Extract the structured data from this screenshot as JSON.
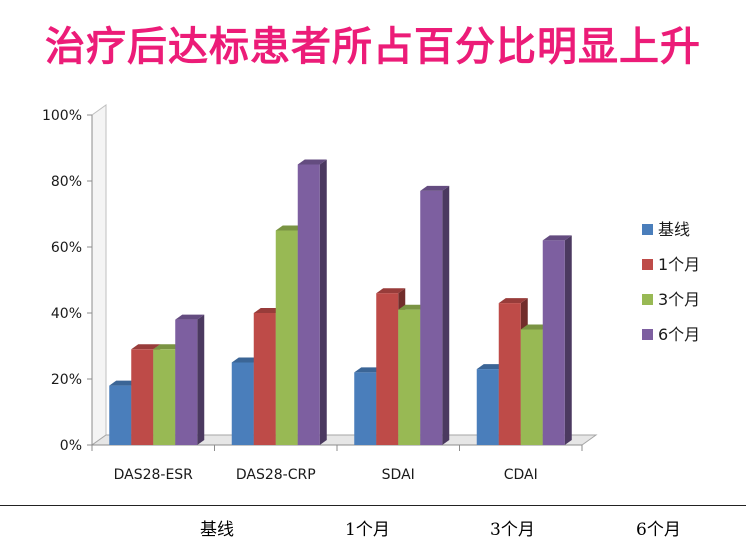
{
  "title": "治疗后达标患者所占百分比明显上升",
  "chart_data": {
    "type": "bar",
    "categories": [
      "DAS28-ESR",
      "DAS28-CRP",
      "SDAI",
      "CDAI"
    ],
    "series": [
      {
        "name": "基线",
        "values": [
          18,
          25,
          22,
          23
        ],
        "color": "#4a7ebb"
      },
      {
        "name": "1个月",
        "values": [
          29,
          40,
          46,
          43
        ],
        "color": "#be4b48"
      },
      {
        "name": "3个月",
        "values": [
          29,
          65,
          41,
          35
        ],
        "color": "#98b954"
      },
      {
        "name": "6个月",
        "values": [
          38,
          85,
          77,
          62
        ],
        "color": "#7d5fa0"
      }
    ],
    "ylim": [
      0,
      100
    ],
    "ytick_labels": [
      "0%",
      "20%",
      "40%",
      "60%",
      "80%",
      "100%"
    ],
    "legend_position": "right",
    "grid": false,
    "style": "3d-columns"
  },
  "bottom_labels": [
    "基线",
    "1个月",
    "3个月",
    "6个月"
  ]
}
